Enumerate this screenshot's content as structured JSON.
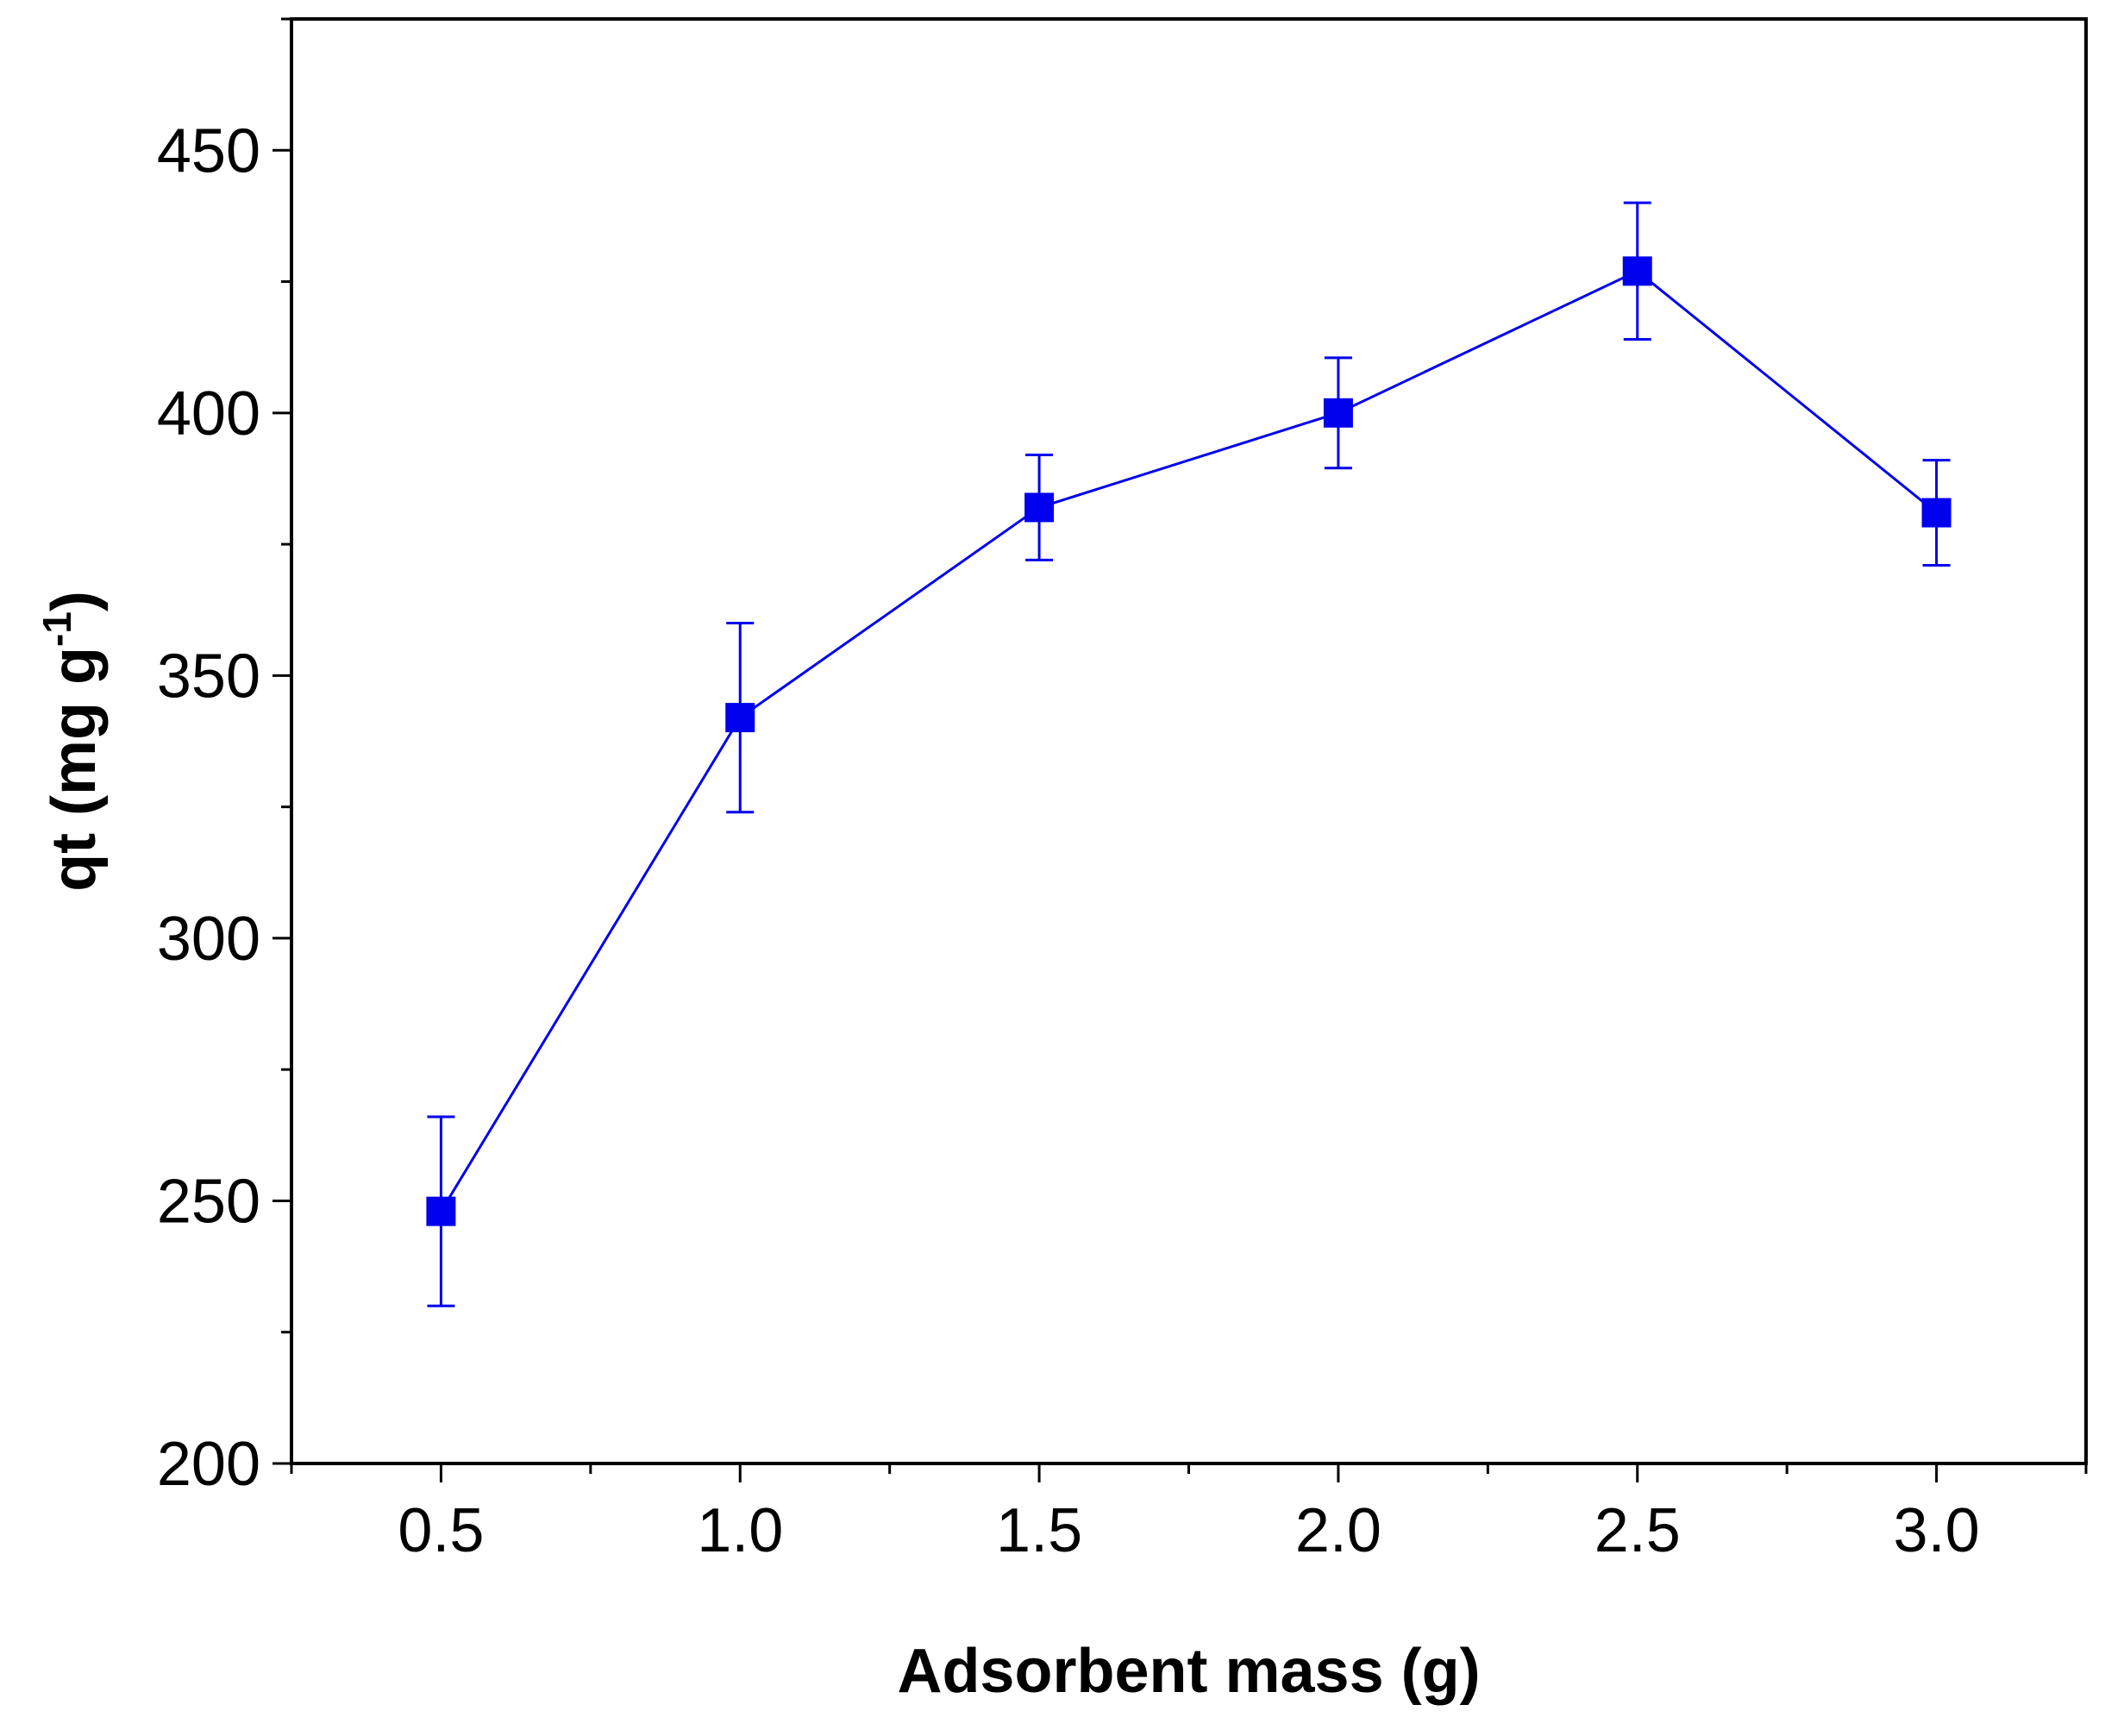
{
  "chart_data": {
    "type": "line",
    "xlabel": "Adsorbent mass (g)",
    "ylabel": {
      "base": "qt (mg g",
      "superscript": "-1",
      "close": ")"
    },
    "xlim": [
      0.25,
      3.25
    ],
    "ylim": [
      200,
      475
    ],
    "x_ticks": [
      "0.5",
      "1.0",
      "1.5",
      "2.0",
      "2.5",
      "3.0"
    ],
    "y_ticks": [
      "200",
      "250",
      "300",
      "350",
      "400",
      "450"
    ],
    "color": "#0000ee",
    "series": [
      {
        "name": "qt",
        "x": [
          0.5,
          1.0,
          1.5,
          2.0,
          2.5,
          3.0
        ],
        "y": [
          248,
          342,
          382,
          400,
          427,
          381
        ],
        "error": [
          18,
          18,
          10,
          10.5,
          13,
          10
        ]
      }
    ]
  }
}
